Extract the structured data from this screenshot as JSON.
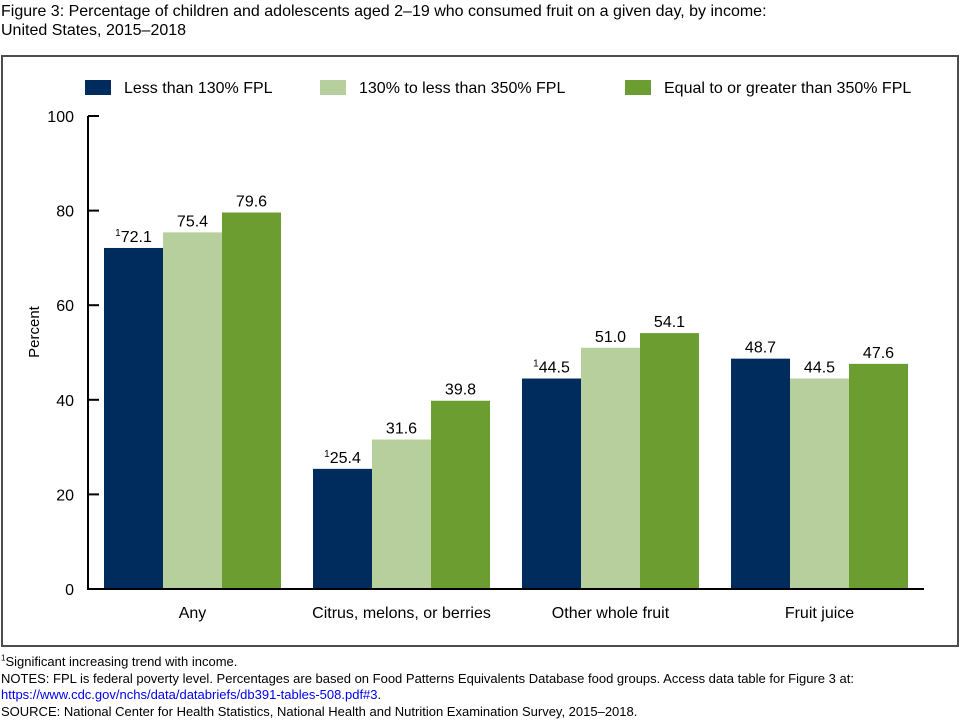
{
  "figure": {
    "title_line1": "Figure 3: Percentage of children and adolescents aged 2–19 who consumed fruit on a given day, by income:",
    "title_line2": "United States, 2015–2018"
  },
  "chart_data": {
    "type": "bar",
    "title": "Percentage of children and adolescents aged 2–19 who consumed fruit on a given day, by income: United States, 2015–2018",
    "xlabel": "",
    "ylabel": "Percent",
    "ylim": [
      0,
      100
    ],
    "yticks": [
      0,
      20,
      40,
      60,
      80,
      100
    ],
    "grid": false,
    "legend_position": "top",
    "categories": [
      "Any",
      "Citrus, melons, or berries",
      "Other whole fruit",
      "Fruit juice"
    ],
    "series": [
      {
        "name": "Less than 130% FPL",
        "color": "#002c5d",
        "values": [
          72.1,
          25.4,
          44.5,
          48.7
        ],
        "labels": [
          "72.1",
          "25.4",
          "44.5",
          "48.7"
        ],
        "footnote_marks": [
          "1",
          "1",
          "1",
          ""
        ]
      },
      {
        "name": "130% to less than 350% FPL",
        "color": "#b7cf9c",
        "values": [
          75.4,
          31.6,
          51.0,
          44.5
        ],
        "labels": [
          "75.4",
          "31.6",
          "51.0",
          "44.5"
        ],
        "footnote_marks": [
          "",
          "",
          "",
          ""
        ]
      },
      {
        "name": "Equal to or greater than 350% FPL",
        "color": "#6c9d31",
        "values": [
          79.6,
          39.8,
          54.1,
          47.6
        ],
        "labels": [
          "79.6",
          "39.8",
          "54.1",
          "47.6"
        ],
        "footnote_marks": [
          "",
          "",
          "",
          ""
        ]
      }
    ]
  },
  "footnotes": {
    "mark": "1",
    "significance": "Significant increasing trend with income.",
    "notes": "NOTES: FPL is federal poverty level. Percentages are based on Food Patterns Equivalents Database food groups. Access data table for Figure 3 at:",
    "link": "https://www.cdc.gov/nchs/data/databriefs/db391-tables-508.pdf#3",
    "link_suffix": ".",
    "source": "SOURCE: National Center for Health Statistics, National Health and Nutrition Examination Survey, 2015–2018."
  }
}
